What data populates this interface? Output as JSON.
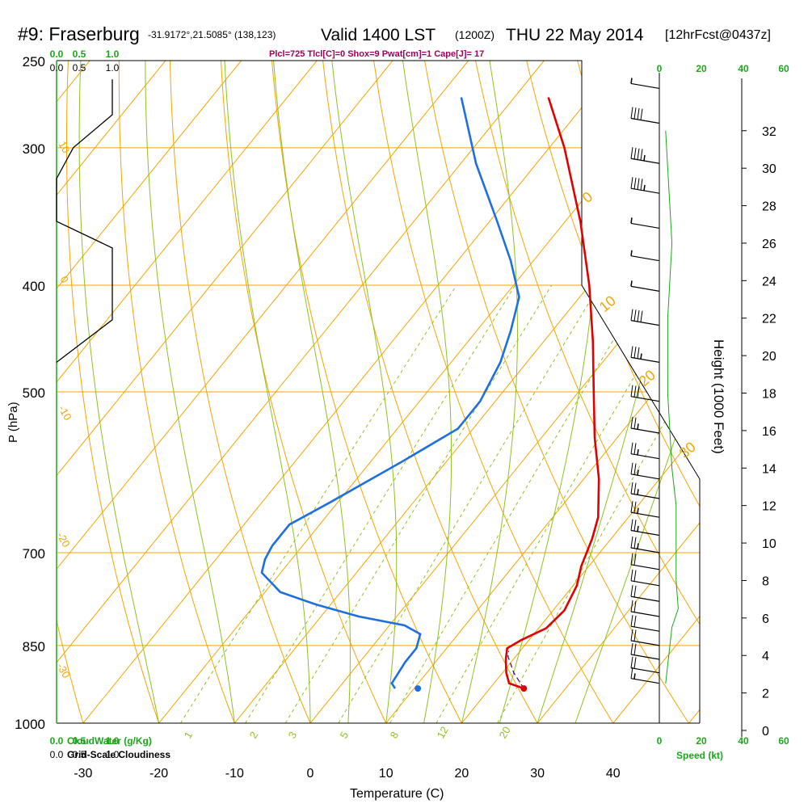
{
  "header": {
    "title": "#9: Fraserburg",
    "coords": "-31.9172°,21.5085° (138,123)",
    "valid": "Valid 1400 LST",
    "zulu": "(1200Z)",
    "date": "THU 22 May 2014",
    "forecast": "[12hrFcst@0437z]"
  },
  "indices": "Plcl=725 Tlcl[C]=0 Shox=9 Pwat[cm]=1 Cape[J]= 17",
  "colors": {
    "isotherm": "#f5a500",
    "dry_adiabat": "#f5a500",
    "moist_adiabat": "#8fc21f",
    "mixing_ratio": "#8fc21f",
    "temperature": "#e00000",
    "dewpoint": "#1e6fe0",
    "cloudwater": "#18a818",
    "title_magenta": "#a0005a"
  },
  "chart_data": {
    "type": "skew-t",
    "xlabel": "Temperature (C)",
    "ylabel": "P (hPa)",
    "right_axis_label": "Height (1000 Feet)",
    "x_ticks": [
      "-30",
      "-20",
      "-10",
      "0",
      "10",
      "20",
      "30",
      "40"
    ],
    "pressure_ticks": [
      "250",
      "300",
      "400",
      "500",
      "700",
      "850",
      "1000"
    ],
    "height_ticks": [
      "0",
      "2",
      "4",
      "6",
      "8",
      "10",
      "12",
      "14",
      "16",
      "18",
      "20",
      "22",
      "24",
      "26",
      "28",
      "30",
      "32"
    ],
    "cloud_axis_labels": {
      "top_green": [
        "0.0",
        "0.5",
        "1.0"
      ],
      "top_black": [
        "0.0",
        "0.5",
        "1.0"
      ],
      "bottom_green": [
        "0.0",
        "0.5",
        "1.0"
      ],
      "bottom_black": [
        "0.0",
        "0.5",
        "1.0"
      ],
      "bottom_green_label": "CloudWater (g/Kg)",
      "bottom_black_label": "Grid-Scale Cloudiness"
    },
    "speed_axis": {
      "top": [
        "0",
        "20",
        "40",
        "60"
      ],
      "bottom": [
        "0",
        "20",
        "40",
        "60"
      ],
      "label": "Speed (kt)"
    },
    "mixing_ratio_labels": [
      "1",
      "2",
      "3",
      "5",
      "8",
      "12",
      "20"
    ],
    "dry_adiabat_labels": [
      "30",
      "20",
      "10",
      "0",
      "-10",
      "-20",
      "-30"
    ],
    "dry_adiabat_labels_right": [
      "0",
      "10",
      "20",
      "30"
    ],
    "temperature_profile": [
      {
        "p": 930,
        "t": 24.5
      },
      {
        "p": 920,
        "t": 22
      },
      {
        "p": 900,
        "t": 20.5
      },
      {
        "p": 875,
        "t": 19
      },
      {
        "p": 855,
        "t": 18
      },
      {
        "p": 840,
        "t": 19
      },
      {
        "p": 820,
        "t": 21
      },
      {
        "p": 790,
        "t": 21.5
      },
      {
        "p": 750,
        "t": 20.5
      },
      {
        "p": 720,
        "t": 19
      },
      {
        "p": 680,
        "t": 17.5
      },
      {
        "p": 650,
        "t": 16
      },
      {
        "p": 600,
        "t": 12
      },
      {
        "p": 550,
        "t": 7
      },
      {
        "p": 500,
        "t": 2
      },
      {
        "p": 450,
        "t": -3.5
      },
      {
        "p": 400,
        "t": -10
      },
      {
        "p": 350,
        "t": -18
      },
      {
        "p": 300,
        "t": -28
      },
      {
        "p": 270,
        "t": -35.5
      }
    ],
    "dewpoint_profile": [
      {
        "p": 930,
        "t": 7.5
      },
      {
        "p": 920,
        "t": 6.5
      },
      {
        "p": 880,
        "t": 6
      },
      {
        "p": 855,
        "t": 6
      },
      {
        "p": 830,
        "t": 5
      },
      {
        "p": 815,
        "t": 2
      },
      {
        "p": 800,
        "t": -5
      },
      {
        "p": 780,
        "t": -12
      },
      {
        "p": 760,
        "t": -18
      },
      {
        "p": 730,
        "t": -22.5
      },
      {
        "p": 710,
        "t": -23.5
      },
      {
        "p": 690,
        "t": -24
      },
      {
        "p": 660,
        "t": -24
      },
      {
        "p": 630,
        "t": -21
      },
      {
        "p": 580,
        "t": -16
      },
      {
        "p": 540,
        "t": -12
      },
      {
        "p": 510,
        "t": -12
      },
      {
        "p": 470,
        "t": -13.5
      },
      {
        "p": 440,
        "t": -15.5
      },
      {
        "p": 410,
        "t": -18
      },
      {
        "p": 380,
        "t": -23
      },
      {
        "p": 350,
        "t": -29
      },
      {
        "p": 310,
        "t": -38
      },
      {
        "p": 270,
        "t": -47
      }
    ],
    "surface_dewpoint": {
      "p": 930,
      "t": 10.5
    },
    "parcel_path": [
      {
        "p": 930,
        "t": 24.5
      },
      {
        "p": 900,
        "t": 21.5
      },
      {
        "p": 870,
        "t": 19
      },
      {
        "p": 860,
        "t": 18.5
      }
    ],
    "cloud_fraction_profile": [
      {
        "p": 470,
        "c": 0.0
      },
      {
        "p": 430,
        "c": 1.0
      },
      {
        "p": 370,
        "c": 1.0
      },
      {
        "p": 350,
        "c": 0.0
      },
      {
        "p": 320,
        "c": 0.0
      },
      {
        "p": 300,
        "c": 0.3
      },
      {
        "p": 280,
        "c": 1.0
      },
      {
        "p": 260,
        "c": 1.0
      }
    ],
    "wind_speed_profile": [
      {
        "h": 2.5,
        "s": 3
      },
      {
        "h": 4.5,
        "s": 5
      },
      {
        "h": 5.5,
        "s": 6
      },
      {
        "h": 6.5,
        "s": 9
      },
      {
        "h": 8,
        "s": 8
      },
      {
        "h": 10,
        "s": 8
      },
      {
        "h": 12,
        "s": 8
      },
      {
        "h": 14,
        "s": 6
      },
      {
        "h": 16,
        "s": 5
      },
      {
        "h": 18,
        "s": 4
      },
      {
        "h": 20,
        "s": 4
      },
      {
        "h": 22,
        "s": 4
      },
      {
        "h": 24,
        "s": 5
      },
      {
        "h": 26,
        "s": 6
      },
      {
        "h": 28,
        "s": 5
      },
      {
        "h": 30,
        "s": 4
      },
      {
        "h": 32,
        "s": 3
      }
    ],
    "wind_barbs": [
      {
        "p": 265,
        "kt": 5
      },
      {
        "p": 285,
        "kt": 40
      },
      {
        "p": 310,
        "kt": 45
      },
      {
        "p": 330,
        "kt": 45
      },
      {
        "p": 355,
        "kt": 5
      },
      {
        "p": 380,
        "kt": 5
      },
      {
        "p": 405,
        "kt": 5
      },
      {
        "p": 435,
        "kt": 40
      },
      {
        "p": 470,
        "kt": 35
      },
      {
        "p": 510,
        "kt": 30
      },
      {
        "p": 545,
        "kt": 25
      },
      {
        "p": 575,
        "kt": 25
      },
      {
        "p": 600,
        "kt": 25
      },
      {
        "p": 625,
        "kt": 25
      },
      {
        "p": 650,
        "kt": 25
      },
      {
        "p": 675,
        "kt": 25
      },
      {
        "p": 700,
        "kt": 25
      },
      {
        "p": 725,
        "kt": 20
      },
      {
        "p": 750,
        "kt": 20
      },
      {
        "p": 775,
        "kt": 20
      },
      {
        "p": 800,
        "kt": 20
      },
      {
        "p": 825,
        "kt": 20
      },
      {
        "p": 850,
        "kt": 20
      },
      {
        "p": 875,
        "kt": 20
      },
      {
        "p": 900,
        "kt": 20
      },
      {
        "p": 920,
        "kt": 15
      }
    ]
  }
}
